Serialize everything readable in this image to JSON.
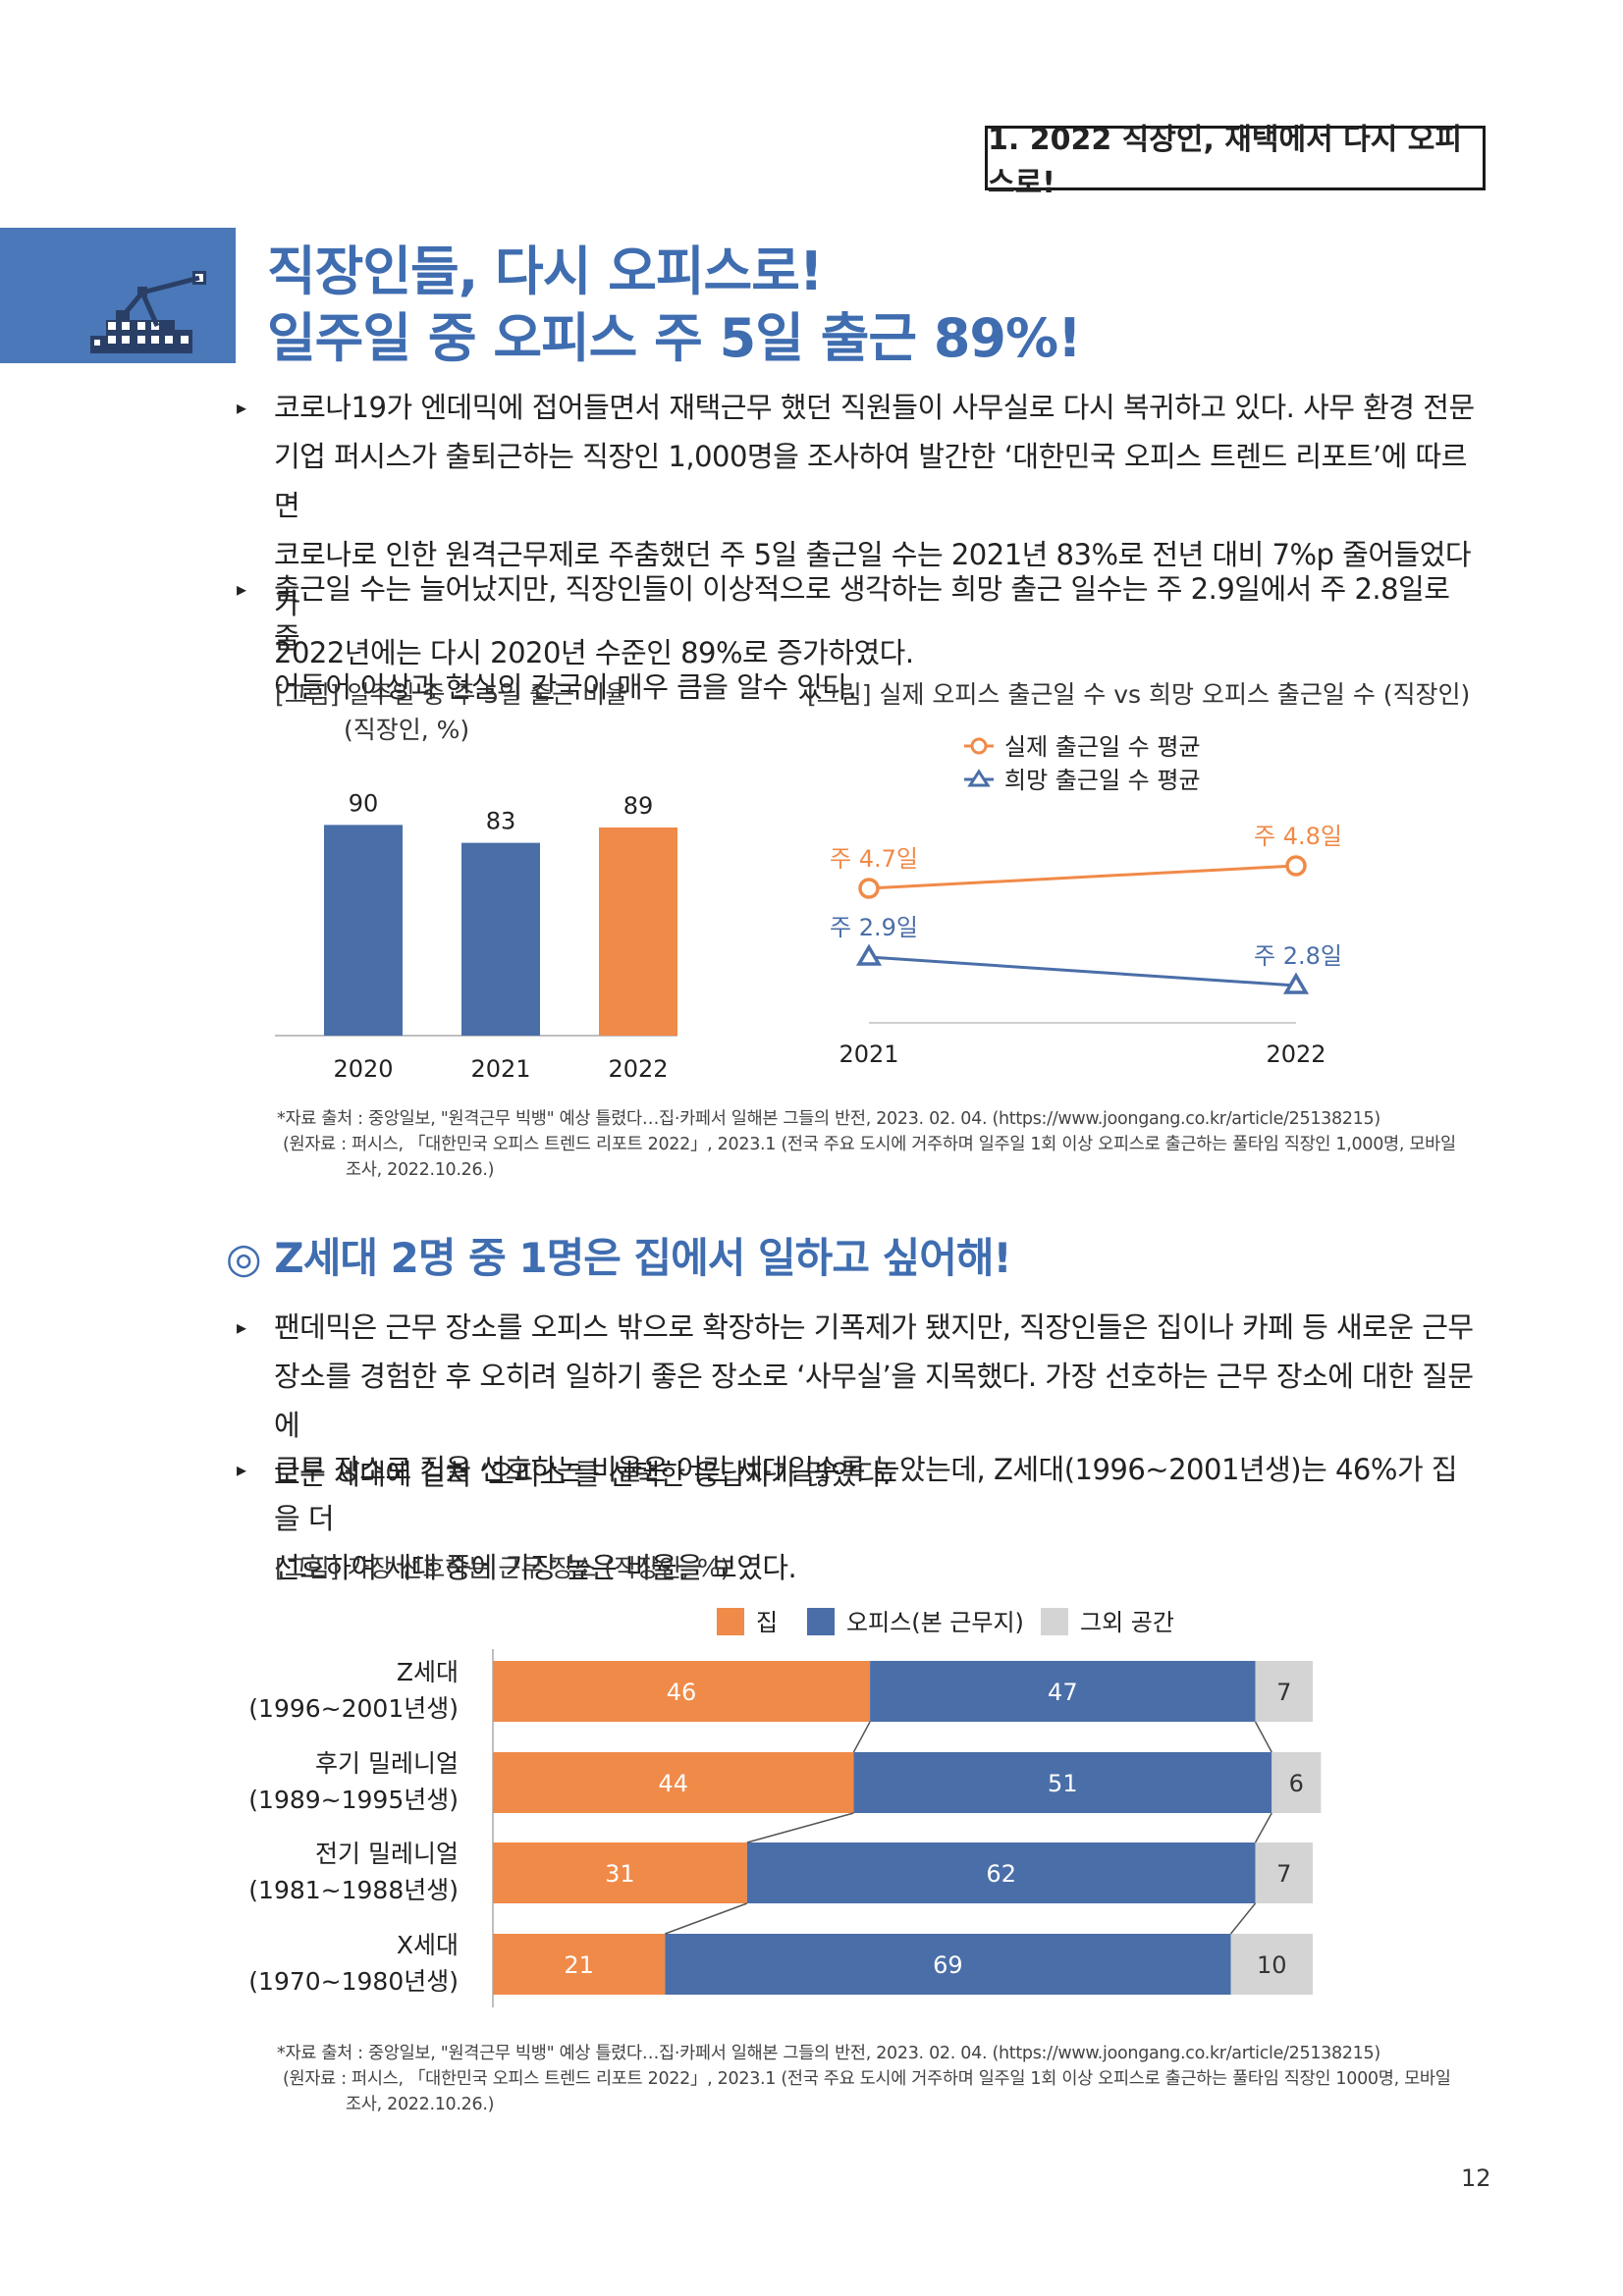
{
  "header": {
    "section_tag": "1. 2022 직장인, 재택에서 다시 오피스로!"
  },
  "title": {
    "line1": "직장인들, 다시 오피스로!",
    "line2": "일주일 중 오피스 주 5일 출근 89%!"
  },
  "bullets1": [
    {
      "lines": [
        "코로나19가 엔데믹에 접어들면서 재택근무 했던 직원들이 사무실로 다시 복귀하고 있다. 사무 환경 전문",
        "기업 퍼시스가 출퇴근하는 직장인 1,000명을 조사하여 발간한 ‘대한민국 오피스 트렌드 리포트’에 따르면",
        "코로나로 인한 원격근무제로 주춤했던 주 5일 출근일 수는 2021년 83%로 전년 대비 7%p 줄어들었다가",
        "2022년에는 다시 2020년 수준인 89%로 증가하였다."
      ]
    },
    {
      "lines": [
        "출근일 수는 늘어났지만, 직장인들이 이상적으로 생각하는 희망 출근 일수는 주 2.9일에서 주 2.8일로 줄",
        "어들어 이상과 현실의 간극이 매우 큼을 알수 있다."
      ]
    }
  ],
  "fig1": {
    "caption_line1": "[그림] 일주일 중 주 5일 출근 비율",
    "caption_line2": "(직장인, %)"
  },
  "fig2": {
    "caption": "[그림] 실제 오피스 출근일 수 vs 희망 오피스 출근일 수 (직장인)"
  },
  "source1": {
    "line1": "*자료 출처 : 중앙일보, \"원격근무 빅뱅\" 예상 틀렸다…집·카페서 일해본 그들의 반전, 2023. 02. 04. (https://www.joongang.co.kr/article/25138215)",
    "line2": "(원자료 : 퍼시스, 「대한민국 오피스 트렌드 리포트 2022」, 2023.1 (전국 주요 도시에 거주하며 일주일 1회 이상 오피스로 출근하는 풀타임 직장인 1,000명, 모바일",
    "line3": "조사, 2022.10.26.)"
  },
  "section2": {
    "title": "◎ Z세대 2명 중 1명은 집에서 일하고 싶어해!"
  },
  "bullets2": [
    {
      "lines": [
        "팬데믹은 근무 장소를 오피스 밖으로 확장하는 기폭제가 됐지만, 직장인들은 집이나 카페 등 새로운 근무",
        "장소를 경험한 후 오히려 일하기 좋은 장소로 ‘사무실’을 지목했다. 가장 선호하는 근무 장소에 대한 질문에",
        "모든 세대에 걸쳐 ‘오피스’를 선택한 응답자가 많았다."
      ]
    },
    {
      "lines": [
        "근무 장소로 집을 선호하는 비율은 어린 세대일수록 높았는데, Z세대(1996~2001년생)는 46%가 집을 더",
        "선호하여 세대 중에 가장 높은 비율을 보였다."
      ]
    }
  ],
  "fig3": {
    "caption": "[그림] 가장 선호하는 근무 장소 (직장인, %)"
  },
  "source2": {
    "line1": "*자료 출처 : 중앙일보, \"원격근무 빅뱅\" 예상 틀렸다…집·카페서 일해본 그들의 반전, 2023. 02. 04. (https://www.joongang.co.kr/article/25138215)",
    "line2": "(원자료 : 퍼시스, 「대한민국 오피스 트렌드 리포트 2022」, 2023.1 (전국 주요 도시에 거주하며 일주일 1회 이상 오피스로 출근하는 풀타임 직장인 1000명, 모바일",
    "line3": "조사, 2022.10.26.)"
  },
  "page_number": "12",
  "colors": {
    "blue": "#4a6ea8",
    "orange": "#f08a48",
    "gray": "#d4d4d4",
    "title_blue": "#3f6db0"
  },
  "chart_data": [
    {
      "type": "bar",
      "categories": [
        "2020",
        "2021",
        "2022"
      ],
      "values": [
        90,
        83,
        89
      ],
      "bar_colors": [
        "#4a6ea8",
        "#4a6ea8",
        "#f08a48"
      ],
      "ylim": [
        0,
        100
      ]
    },
    {
      "type": "line",
      "x": [
        "2021",
        "2022"
      ],
      "series": [
        {
          "name": "실제 출근일 수 평균",
          "values": [
            4.7,
            4.8
          ],
          "labels": [
            "주 4.7일",
            "주 4.8일"
          ],
          "color": "#f08a48",
          "marker": "circle"
        },
        {
          "name": "희망 출근일 수 평균",
          "values": [
            2.9,
            2.8
          ],
          "labels": [
            "주 2.9일",
            "주 2.8일"
          ],
          "color": "#4a6ea8",
          "marker": "triangle"
        }
      ]
    },
    {
      "type": "bar",
      "orientation": "horizontal-stacked",
      "categories": [
        {
          "line1": "Z세대",
          "line2": "(1996~2001년생)"
        },
        {
          "line1": "후기 밀레니얼",
          "line2": "(1989~1995년생)"
        },
        {
          "line1": "전기 밀레니얼",
          "line2": "(1981~1988년생)"
        },
        {
          "line1": "X세대",
          "line2": "(1970~1980년생)"
        }
      ],
      "series": [
        {
          "name": "집",
          "values": [
            46,
            44,
            31,
            21
          ],
          "color": "#f08a48"
        },
        {
          "name": "오피스(본 근무지)",
          "values": [
            47,
            51,
            62,
            69
          ],
          "color": "#4a6ea8"
        },
        {
          "name": "그외 공간",
          "values": [
            7,
            6,
            7,
            10
          ],
          "color": "#d4d4d4"
        }
      ],
      "xlim": [
        0,
        100
      ]
    }
  ]
}
